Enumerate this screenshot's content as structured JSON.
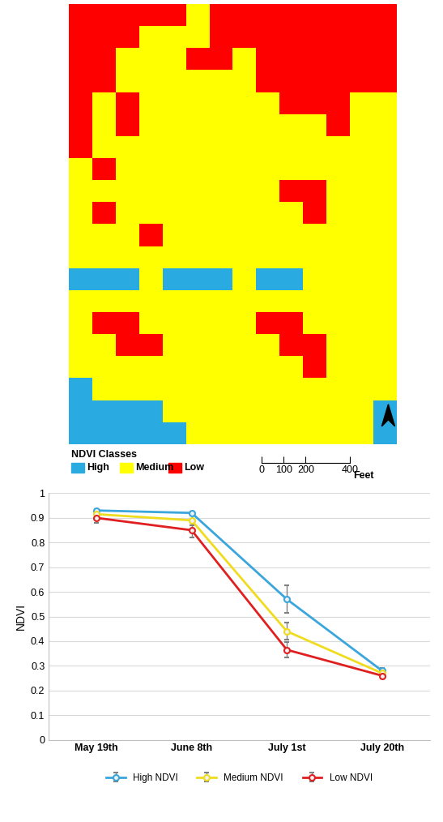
{
  "map": {
    "legend_title": "NDVI Classes",
    "classes": [
      {
        "name": "High",
        "color": "#29abe2"
      },
      {
        "name": "Medium",
        "color": "#ffff00"
      },
      {
        "name": "Low",
        "color": "#ff0000"
      }
    ],
    "scale_bar": {
      "ticks": [
        0,
        100,
        200,
        400
      ],
      "unit": "Feet"
    }
  },
  "chart_data": {
    "type": "line",
    "categories": [
      "May 19th",
      "June 8th",
      "July 1st",
      "July 20th"
    ],
    "y_label": "NDVI",
    "ylim": [
      0,
      1
    ],
    "yticks": [
      0,
      0.1,
      0.2,
      0.3,
      0.4,
      0.5,
      0.6,
      0.7,
      0.8,
      0.9,
      1
    ],
    "grid": true,
    "legend": "bottom",
    "marker": "circle",
    "series": [
      {
        "name": "High NDVI",
        "color": "#3aa6dc",
        "values": [
          0.93,
          0.92,
          0.57,
          0.28
        ],
        "errors": [
          0.005,
          0.005,
          0.055,
          0.01
        ]
      },
      {
        "name": "Medium NDVI",
        "color": "#f0dc1e",
        "values": [
          0.915,
          0.89,
          0.44,
          0.27
        ],
        "errors": [
          0.01,
          0.02,
          0.035,
          0.01
        ]
      },
      {
        "name": "Low NDVI",
        "color": "#e02020",
        "values": [
          0.9,
          0.85,
          0.365,
          0.26
        ],
        "errors": [
          0.02,
          0.03,
          0.03,
          0.01
        ]
      }
    ]
  }
}
